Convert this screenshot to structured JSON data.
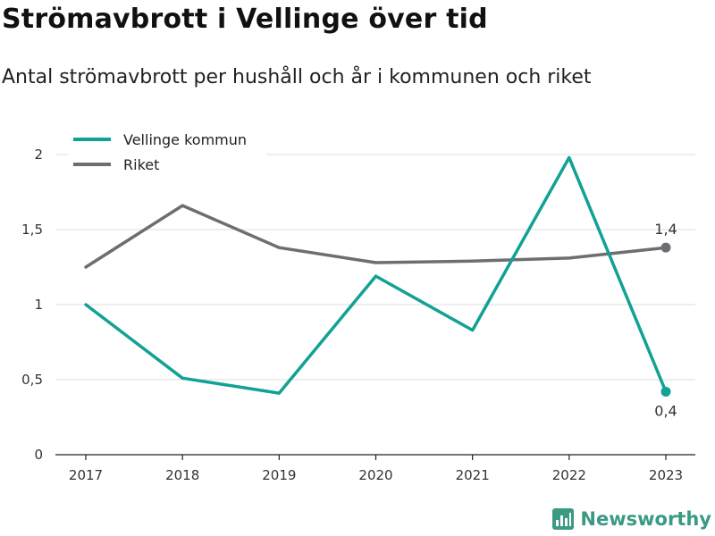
{
  "title": "Strömavbrott i Vellinge över tid",
  "subtitle": "Antal strömavbrott per hushåll och år i kommunen och riket",
  "brand": {
    "name": "Newsworthy",
    "color": "#3a9a84"
  },
  "chart_data": {
    "type": "line",
    "categories": [
      "2017",
      "2018",
      "2019",
      "2020",
      "2021",
      "2022",
      "2023"
    ],
    "ylim": [
      0,
      2
    ],
    "yticks": [
      0,
      0.5,
      1,
      1.5,
      2
    ],
    "ytick_labels": [
      "0",
      "0,5",
      "1",
      "1,5",
      "2"
    ],
    "grid": true,
    "legend_position": "top-left",
    "series": [
      {
        "name": "Vellinge kommun",
        "color": "#12a195",
        "values": [
          1.0,
          0.51,
          0.41,
          1.19,
          0.83,
          1.98,
          0.42
        ],
        "end_label": "0,4",
        "end_label_position": "below"
      },
      {
        "name": "Riket",
        "color": "#6d6e72",
        "values": [
          1.25,
          1.66,
          1.38,
          1.28,
          1.29,
          1.31,
          1.38
        ],
        "end_label": "1,4",
        "end_label_position": "above"
      }
    ]
  }
}
